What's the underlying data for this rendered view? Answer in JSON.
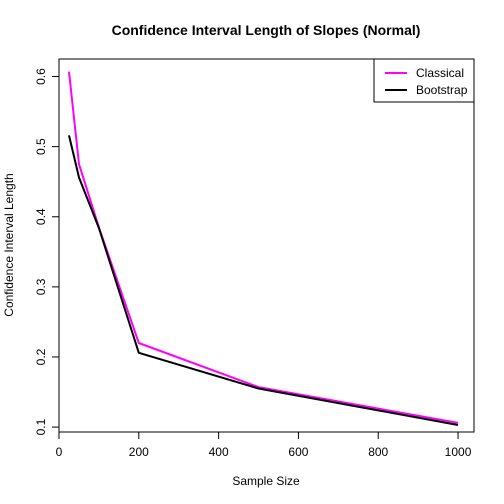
{
  "chart_data": {
    "type": "line",
    "title": "Confidence Interval Length of Slopes (Normal)",
    "xlabel": "Sample Size",
    "ylabel": "Confidence Interval Length",
    "xlim": [
      0,
      1040
    ],
    "ylim": [
      0.093,
      0.625
    ],
    "x_ticks": [
      0,
      200,
      400,
      600,
      800,
      1000
    ],
    "y_ticks": [
      0.1,
      0.2,
      0.3,
      0.4,
      0.5,
      0.6
    ],
    "grid": false,
    "legend_position": "top-right",
    "x": [
      25,
      50,
      100,
      200,
      500,
      1000
    ],
    "series": [
      {
        "name": "Classical",
        "color": "#FF00FF",
        "values": [
          0.607,
          0.475,
          0.385,
          0.22,
          0.157,
          0.106
        ]
      },
      {
        "name": "Bootstrap",
        "color": "#000000",
        "values": [
          0.516,
          0.456,
          0.384,
          0.206,
          0.155,
          0.103
        ]
      }
    ]
  }
}
